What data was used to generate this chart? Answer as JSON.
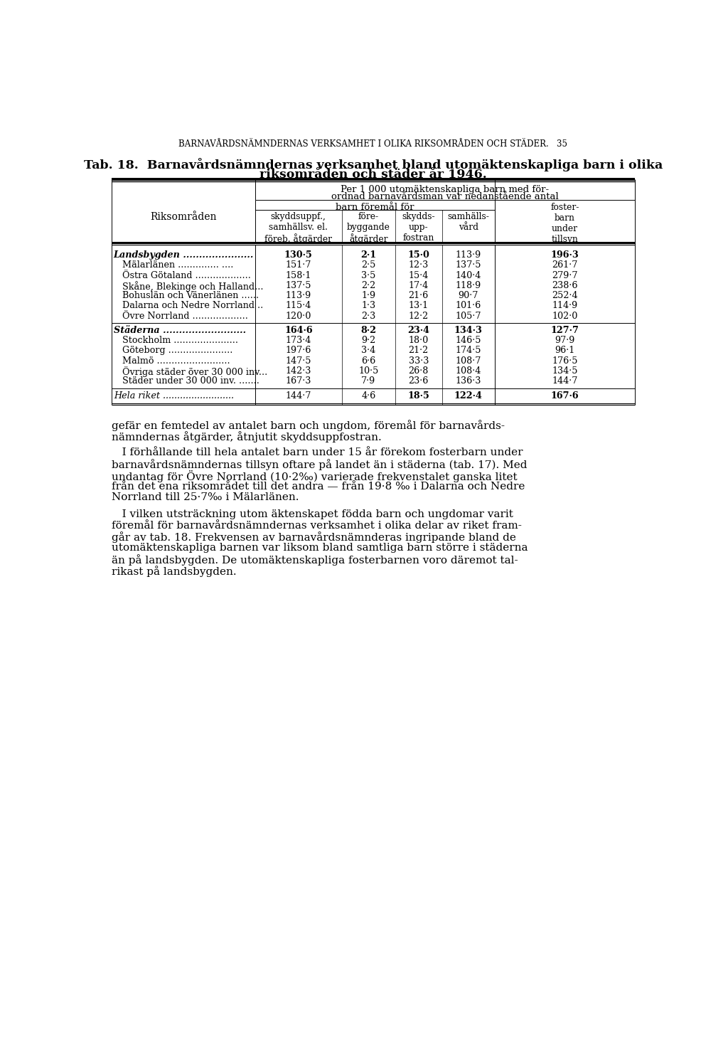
{
  "page_header": "BARNAVÅRDSNÄMNDERNAS VERKSAMHET I OLIKA RIKSOMRÅDEN OCH STÄDER.   35",
  "tab_title_line1": "Tab. 18.  Barnavårdsnämndernas verksamhet bland utomäktenskapliga barn i olika",
  "tab_title_line2": "riksområden och städer år 1946.",
  "rows": [
    {
      "name": "Landsbygden ......................",
      "indent": 0,
      "italic": true,
      "bold": true,
      "c1": "130·5",
      "c2": "2·1",
      "c3": "15·0",
      "c4": "113·9",
      "c5": "196·3",
      "c1b": true,
      "c2b": true,
      "c3b": true,
      "c4b": false,
      "c5b": true
    },
    {
      "name": "Mälarlänen .............. ....",
      "indent": 1,
      "italic": false,
      "bold": false,
      "c1": "151·7",
      "c2": "2·5",
      "c3": "12·3",
      "c4": "137·5",
      "c5": "261·7",
      "c1b": false,
      "c2b": false,
      "c3b": false,
      "c4b": false,
      "c5b": false
    },
    {
      "name": "Östra Götaland ...................",
      "indent": 1,
      "italic": false,
      "bold": false,
      "c1": "158·1",
      "c2": "3·5",
      "c3": "15·4",
      "c4": "140·4",
      "c5": "279·7",
      "c1b": false,
      "c2b": false,
      "c3b": false,
      "c4b": false,
      "c5b": false
    },
    {
      "name": "Skåne, Blekinge och Halland...",
      "indent": 1,
      "italic": false,
      "bold": false,
      "c1": "137·5",
      "c2": "2·2",
      "c3": "17·4",
      "c4": "118·9",
      "c5": "238·6",
      "c1b": false,
      "c2b": false,
      "c3b": false,
      "c4b": false,
      "c5b": false
    },
    {
      "name": "Bohuslän och Vänerlänen ......",
      "indent": 1,
      "italic": false,
      "bold": false,
      "c1": "113·9",
      "c2": "1·9",
      "c3": "21·6",
      "c4": "90·7",
      "c5": "252·4",
      "c1b": false,
      "c2b": false,
      "c3b": false,
      "c4b": false,
      "c5b": false
    },
    {
      "name": "Dalarna och Nedre Norrland ..",
      "indent": 1,
      "italic": false,
      "bold": false,
      "c1": "115·4",
      "c2": "1·3",
      "c3": "13·1",
      "c4": "101·6",
      "c5": "114·9",
      "c1b": false,
      "c2b": false,
      "c3b": false,
      "c4b": false,
      "c5b": false
    },
    {
      "name": "Övre Norrland ...................",
      "indent": 1,
      "italic": false,
      "bold": false,
      "c1": "120·0",
      "c2": "2·3",
      "c3": "12·2",
      "c4": "105·7",
      "c5": "102·0",
      "c1b": false,
      "c2b": false,
      "c3b": false,
      "c4b": false,
      "c5b": false
    },
    {
      "name": "Städerna ..........................",
      "indent": 0,
      "italic": true,
      "bold": true,
      "c1": "164·6",
      "c2": "8·2",
      "c3": "23·4",
      "c4": "134·3",
      "c5": "127·7",
      "c1b": true,
      "c2b": true,
      "c3b": true,
      "c4b": true,
      "c5b": true,
      "spacer_before": true
    },
    {
      "name": "Stockholm ......................",
      "indent": 1,
      "italic": false,
      "bold": false,
      "c1": "173·4",
      "c2": "9·2",
      "c3": "18·0",
      "c4": "146·5",
      "c5": "97·9",
      "c1b": false,
      "c2b": false,
      "c3b": false,
      "c4b": false,
      "c5b": false
    },
    {
      "name": "Göteborg ......................",
      "indent": 1,
      "italic": false,
      "bold": false,
      "c1": "197·6",
      "c2": "3·4",
      "c3": "21·2",
      "c4": "174·5",
      "c5": "96·1",
      "c1b": false,
      "c2b": false,
      "c3b": false,
      "c4b": false,
      "c5b": false
    },
    {
      "name": "Malmö .........................",
      "indent": 1,
      "italic": false,
      "bold": false,
      "c1": "147·5",
      "c2": "6·6",
      "c3": "33·3",
      "c4": "108·7",
      "c5": "176·5",
      "c1b": false,
      "c2b": false,
      "c3b": false,
      "c4b": false,
      "c5b": false
    },
    {
      "name": "Övriga städer över 30 000 inv...",
      "indent": 1,
      "italic": false,
      "bold": false,
      "c1": "142·3",
      "c2": "10·5",
      "c3": "26·8",
      "c4": "108·4",
      "c5": "134·5",
      "c1b": false,
      "c2b": false,
      "c3b": false,
      "c4b": false,
      "c5b": false
    },
    {
      "name": "Städer under 30 000 inv. .......",
      "indent": 1,
      "italic": false,
      "bold": false,
      "c1": "167·3",
      "c2": "7·9",
      "c3": "23·6",
      "c4": "136·3",
      "c5": "144·7",
      "c1b": false,
      "c2b": false,
      "c3b": false,
      "c4b": false,
      "c5b": false
    },
    {
      "name": "Hela riket .........................",
      "indent": 0,
      "italic": true,
      "bold": false,
      "c1": "144·7",
      "c2": "4·6",
      "c3": "18·5",
      "c4": "122·4",
      "c5": "167·6",
      "c1b": false,
      "c2b": false,
      "c3b": true,
      "c4b": true,
      "c5b": true,
      "spacer_before": true
    }
  ],
  "body_paragraphs": [
    {
      "lines": [
        "gefär en femtedel av antalet barn och ungdom, föremål för barnavårds-",
        "nämndernas åtgärder, åtnjutit skyddsuppfostran."
      ],
      "indent": false
    },
    {
      "lines": [
        "   I förhållande till hela antalet barn under 15 år förekom fosterbarn under",
        "barnavårdsnämndernas tillsyn oftare på landet än i städerna (tab. 17). Med",
        "undantag för Övre Norrland (10·2‰) varierade frekvenstalet ganska litet",
        "från det ena riksområdet till det andra — från 19·8 ‰ i Dalarna och Nedre",
        "Norrland till 25·7‰ i Mälarlänen."
      ],
      "indent": false
    },
    {
      "lines": [
        "   I vilken utsträckning utom äktenskapet födda barn och ungdomar varit",
        "föremål för barnavårdsnämndernas verksamhet i olika delar av riket fram-",
        "går av tab. 18. Frekvensen av barnavårdsnämnderas ingripande bland de",
        "utomäktenskapliga barnen var liksom bland samtliga barn större i städerna",
        "än på landsbygden. De utomäktenskapliga fosterbarnen voro däremot tal-",
        "rikast på landsbygden."
      ],
      "indent": false
    }
  ]
}
